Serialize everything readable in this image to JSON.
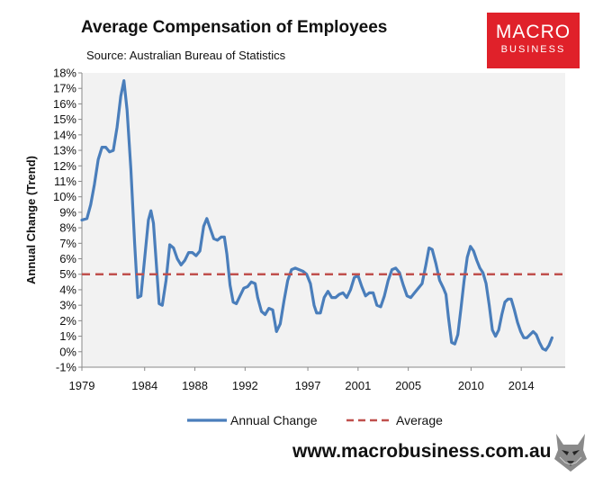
{
  "header": {
    "title": "Average Compensation of Employees",
    "source": "Source: Australian Bureau of Statistics"
  },
  "logo": {
    "line1": "MACRO",
    "line2": "BUSINESS",
    "bg_color": "#e0212a"
  },
  "footer": {
    "website": "www.macrobusiness.com.au"
  },
  "chart_data": {
    "type": "line",
    "ylabel": "Annual Change (Trend)",
    "xlabel": "",
    "xlim": [
      1979,
      2017.5
    ],
    "ylim": [
      -1,
      18
    ],
    "y_ticks": [
      -1,
      0,
      1,
      2,
      3,
      4,
      5,
      6,
      7,
      8,
      9,
      10,
      11,
      12,
      13,
      14,
      15,
      16,
      17,
      18
    ],
    "y_tick_suffix": "%",
    "x_ticks": [
      1979,
      1984,
      1988,
      1992,
      1997,
      2001,
      2005,
      2010,
      2014
    ],
    "grid": false,
    "plot_background": "#f2f2f2",
    "legend_position": "bottom",
    "series": [
      {
        "name": "Annual Change",
        "color": "#4a7ebb",
        "style": "solid",
        "points": [
          [
            1979.0,
            8.5
          ],
          [
            1979.4,
            8.6
          ],
          [
            1979.7,
            9.5
          ],
          [
            1980.0,
            10.8
          ],
          [
            1980.3,
            12.4
          ],
          [
            1980.6,
            13.2
          ],
          [
            1980.9,
            13.2
          ],
          [
            1981.2,
            12.9
          ],
          [
            1981.5,
            13.0
          ],
          [
            1981.8,
            14.5
          ],
          [
            1982.1,
            16.5
          ],
          [
            1982.35,
            17.5
          ],
          [
            1982.6,
            15.6
          ],
          [
            1982.9,
            11.8
          ],
          [
            1983.2,
            7.0
          ],
          [
            1983.45,
            3.5
          ],
          [
            1983.7,
            3.6
          ],
          [
            1984.0,
            6.0
          ],
          [
            1984.3,
            8.5
          ],
          [
            1984.5,
            9.1
          ],
          [
            1984.7,
            8.3
          ],
          [
            1984.9,
            6.0
          ],
          [
            1985.15,
            3.1
          ],
          [
            1985.4,
            3.0
          ],
          [
            1985.7,
            4.6
          ],
          [
            1986.0,
            6.9
          ],
          [
            1986.3,
            6.7
          ],
          [
            1986.6,
            6.0
          ],
          [
            1986.9,
            5.6
          ],
          [
            1987.2,
            5.9
          ],
          [
            1987.5,
            6.4
          ],
          [
            1987.8,
            6.4
          ],
          [
            1988.1,
            6.2
          ],
          [
            1988.4,
            6.5
          ],
          [
            1988.7,
            8.1
          ],
          [
            1988.95,
            8.6
          ],
          [
            1989.2,
            8.0
          ],
          [
            1989.5,
            7.3
          ],
          [
            1989.8,
            7.2
          ],
          [
            1990.1,
            7.4
          ],
          [
            1990.35,
            7.4
          ],
          [
            1990.55,
            6.3
          ],
          [
            1990.8,
            4.3
          ],
          [
            1991.05,
            3.2
          ],
          [
            1991.3,
            3.1
          ],
          [
            1991.6,
            3.6
          ],
          [
            1991.9,
            4.1
          ],
          [
            1992.2,
            4.2
          ],
          [
            1992.5,
            4.5
          ],
          [
            1992.8,
            4.4
          ],
          [
            1993.0,
            3.5
          ],
          [
            1993.3,
            2.6
          ],
          [
            1993.6,
            2.4
          ],
          [
            1993.9,
            2.8
          ],
          [
            1994.2,
            2.7
          ],
          [
            1994.5,
            1.3
          ],
          [
            1994.8,
            1.8
          ],
          [
            1995.1,
            3.3
          ],
          [
            1995.4,
            4.6
          ],
          [
            1995.7,
            5.3
          ],
          [
            1996.0,
            5.4
          ],
          [
            1996.3,
            5.3
          ],
          [
            1996.6,
            5.2
          ],
          [
            1996.9,
            5.0
          ],
          [
            1997.2,
            4.4
          ],
          [
            1997.5,
            3.0
          ],
          [
            1997.7,
            2.5
          ],
          [
            1998.0,
            2.5
          ],
          [
            1998.3,
            3.5
          ],
          [
            1998.6,
            3.9
          ],
          [
            1998.9,
            3.5
          ],
          [
            1999.2,
            3.5
          ],
          [
            1999.5,
            3.7
          ],
          [
            1999.8,
            3.8
          ],
          [
            2000.1,
            3.5
          ],
          [
            2000.4,
            4.0
          ],
          [
            2000.7,
            4.8
          ],
          [
            2001.0,
            4.9
          ],
          [
            2001.3,
            4.2
          ],
          [
            2001.6,
            3.6
          ],
          [
            2001.9,
            3.8
          ],
          [
            2002.2,
            3.8
          ],
          [
            2002.5,
            3.0
          ],
          [
            2002.8,
            2.9
          ],
          [
            2003.1,
            3.6
          ],
          [
            2003.4,
            4.6
          ],
          [
            2003.7,
            5.3
          ],
          [
            2004.0,
            5.4
          ],
          [
            2004.3,
            5.1
          ],
          [
            2004.6,
            4.3
          ],
          [
            2004.9,
            3.6
          ],
          [
            2005.2,
            3.5
          ],
          [
            2005.5,
            3.8
          ],
          [
            2005.8,
            4.1
          ],
          [
            2006.1,
            4.4
          ],
          [
            2006.4,
            5.6
          ],
          [
            2006.65,
            6.7
          ],
          [
            2006.9,
            6.6
          ],
          [
            2007.2,
            5.7
          ],
          [
            2007.5,
            4.6
          ],
          [
            2007.8,
            4.1
          ],
          [
            2008.0,
            3.7
          ],
          [
            2008.2,
            2.2
          ],
          [
            2008.45,
            0.6
          ],
          [
            2008.7,
            0.5
          ],
          [
            2008.95,
            1.1
          ],
          [
            2009.2,
            2.8
          ],
          [
            2009.45,
            4.6
          ],
          [
            2009.7,
            6.1
          ],
          [
            2009.95,
            6.8
          ],
          [
            2010.2,
            6.5
          ],
          [
            2010.45,
            5.9
          ],
          [
            2010.7,
            5.4
          ],
          [
            2010.95,
            5.1
          ],
          [
            2011.2,
            4.4
          ],
          [
            2011.45,
            3.0
          ],
          [
            2011.7,
            1.4
          ],
          [
            2011.95,
            1.0
          ],
          [
            2012.2,
            1.4
          ],
          [
            2012.45,
            2.4
          ],
          [
            2012.7,
            3.2
          ],
          [
            2012.95,
            3.4
          ],
          [
            2013.2,
            3.4
          ],
          [
            2013.45,
            2.7
          ],
          [
            2013.7,
            1.9
          ],
          [
            2013.95,
            1.3
          ],
          [
            2014.2,
            0.9
          ],
          [
            2014.45,
            0.9
          ],
          [
            2014.7,
            1.1
          ],
          [
            2014.95,
            1.3
          ],
          [
            2015.2,
            1.1
          ],
          [
            2015.45,
            0.6
          ],
          [
            2015.7,
            0.2
          ],
          [
            2015.95,
            0.1
          ],
          [
            2016.2,
            0.4
          ],
          [
            2016.45,
            0.9
          ]
        ]
      },
      {
        "name": "Average",
        "color": "#c0504d",
        "style": "dashed",
        "points": [
          [
            1979.0,
            5.0
          ],
          [
            2017.5,
            5.0
          ]
        ]
      }
    ]
  }
}
